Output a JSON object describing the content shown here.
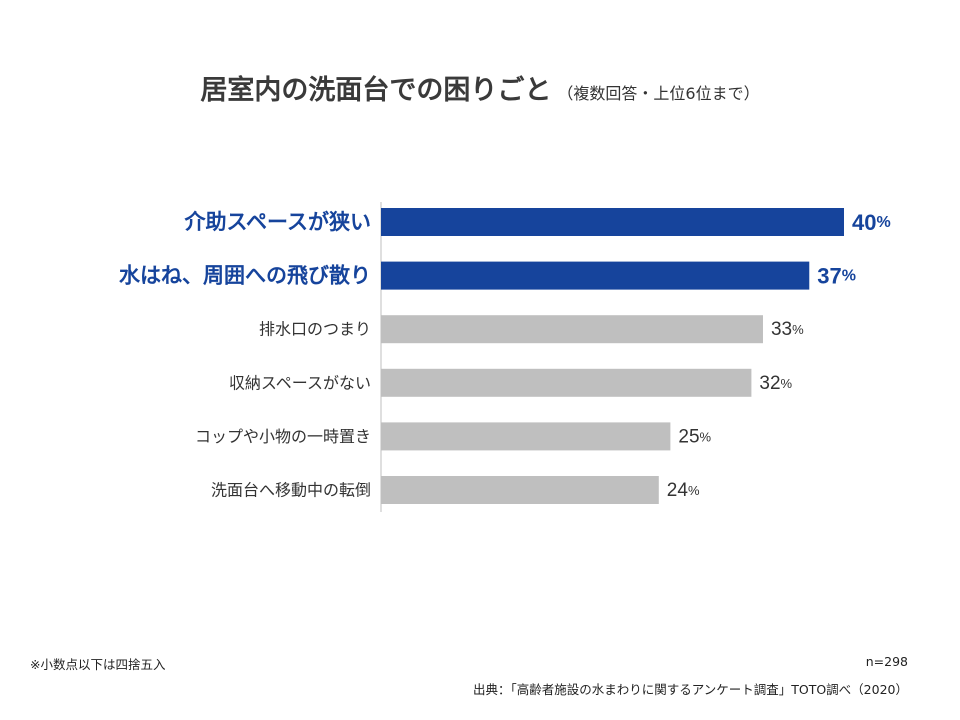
{
  "title": "居室内の洗面台での困りごと",
  "subtitle": "（複数回答・上位6位まで）",
  "note": "※小数点以下は四捨五入",
  "sample_size": "n=298",
  "source": "出典：「高齢者施設の水まわりに関するアンケート調査」TOTO調べ（2020）",
  "colors": {
    "highlight": "#16449c",
    "bar": "#bfbfbf",
    "label_default": "#333333",
    "axis": "#bfbfbf"
  },
  "chart_data": {
    "type": "bar",
    "orientation": "horizontal",
    "categories": [
      "介助スペースが狭い",
      "水はね、周囲への飛び散り",
      "排水口のつまり",
      "収納スペースがない",
      "コップや小物の一時置き",
      "洗面台へ移動中の転倒"
    ],
    "values": [
      40,
      37,
      33,
      32,
      25,
      24
    ],
    "value_unit": "%",
    "highlighted": [
      true,
      true,
      false,
      false,
      false,
      false
    ],
    "xlim": [
      0,
      40
    ],
    "grid": false,
    "legend": "none"
  }
}
